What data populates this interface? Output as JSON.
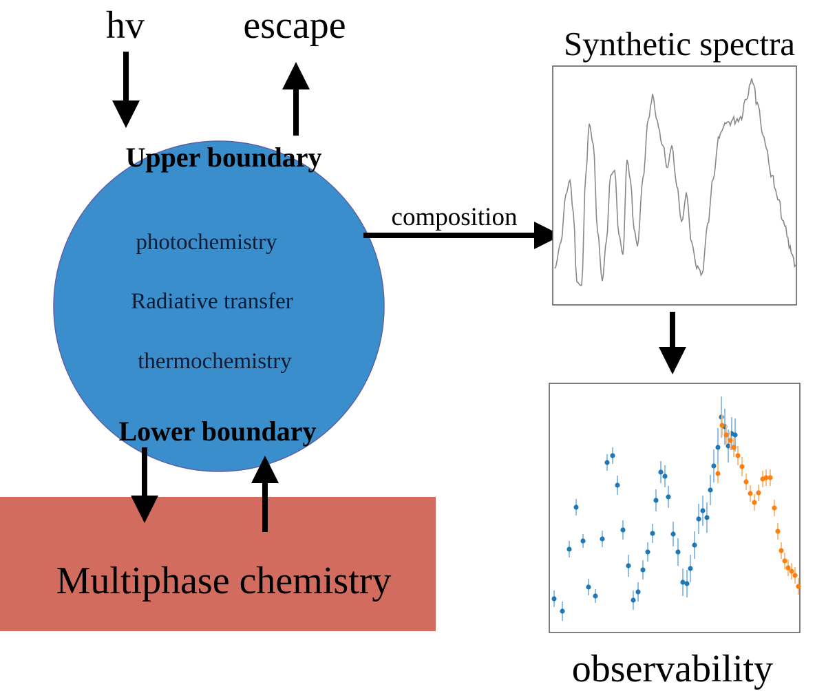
{
  "incoming_label": "hv",
  "escape_label": "escape",
  "upper_boundary": "Upper boundary",
  "lower_boundary": "Lower boundary",
  "processes": [
    "photochemistry",
    "Radiative transfer",
    "thermochemistry"
  ],
  "composition_label": "composition",
  "multiphase_label": "Multiphase chemistry",
  "spectra_title": "Synthetic spectra",
  "observability_label": "observability",
  "colors": {
    "atmosphere": "#3a8ecb",
    "surface": "#d26c5e",
    "arrow": "#000000",
    "spectrum_line": "#888888",
    "obs_blue": "#1f77b4",
    "obs_orange": "#ff7f0e",
    "obs_blue_err": "#8fbfe6",
    "obs_orange_err": "#ffbd80"
  }
}
